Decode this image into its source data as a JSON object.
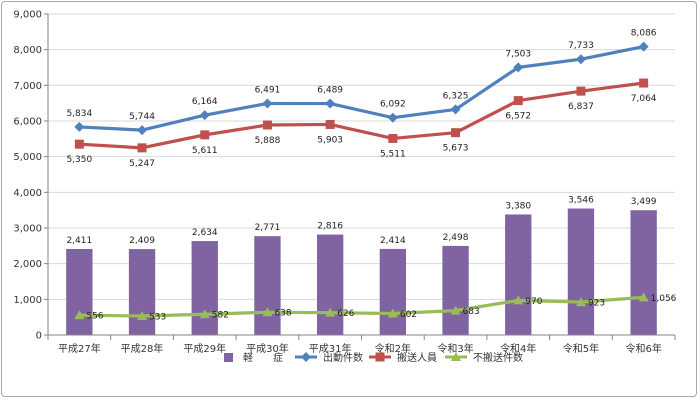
{
  "chart_data": {
    "type": "bar",
    "categories": [
      "平成27年",
      "平成28年",
      "平成29年",
      "平成30年",
      "平成31年",
      "令和2年",
      "令和3年",
      "令和4年",
      "令和5年",
      "令和6年"
    ],
    "ylim": [
      0,
      9000
    ],
    "yticks": [
      0,
      1000,
      2000,
      3000,
      4000,
      5000,
      6000,
      7000,
      8000,
      9000
    ],
    "ytick_labels": [
      "0",
      "1,000",
      "2,000",
      "3,000",
      "4,000",
      "5,000",
      "6,000",
      "7,000",
      "8,000",
      "9,000"
    ],
    "grid": true,
    "legend_position": "bottom",
    "series": [
      {
        "name": "軽　　症",
        "type": "bar",
        "color": "#8064a2",
        "values": [
          2411,
          2409,
          2634,
          2771,
          2816,
          2414,
          2498,
          3380,
          3546,
          3499
        ],
        "labels": [
          "2,411",
          "2,409",
          "2,634",
          "2,771",
          "2,816",
          "2,414",
          "2,498",
          "3,380",
          "3,546",
          "3,499"
        ]
      },
      {
        "name": "出動件数",
        "type": "line",
        "color": "#4f81bd",
        "marker": "diamond",
        "values": [
          5834,
          5744,
          6164,
          6491,
          6489,
          6092,
          6325,
          7503,
          7733,
          8086
        ],
        "labels": [
          "5,834",
          "5,744",
          "6,164",
          "6,491",
          "6,489",
          "6,092",
          "6,325",
          "7,503",
          "7,733",
          "8,086"
        ]
      },
      {
        "name": "搬送人員",
        "type": "line",
        "color": "#c0504d",
        "marker": "square",
        "values": [
          5350,
          5247,
          5611,
          5888,
          5903,
          5511,
          5673,
          6572,
          6837,
          7064
        ],
        "labels": [
          "5,350",
          "5,247",
          "5,611",
          "5,888",
          "5,903",
          "5,511",
          "5,673",
          "6,572",
          "6,837",
          "7,064"
        ]
      },
      {
        "name": "不搬送件数",
        "type": "line",
        "color": "#9bbb59",
        "marker": "triangle",
        "values": [
          556,
          533,
          582,
          638,
          626,
          602,
          683,
          970,
          923,
          1056
        ],
        "labels": [
          "556",
          "533",
          "582",
          "638",
          "626",
          "602",
          "683",
          "970",
          "923",
          "1,056"
        ]
      }
    ]
  }
}
